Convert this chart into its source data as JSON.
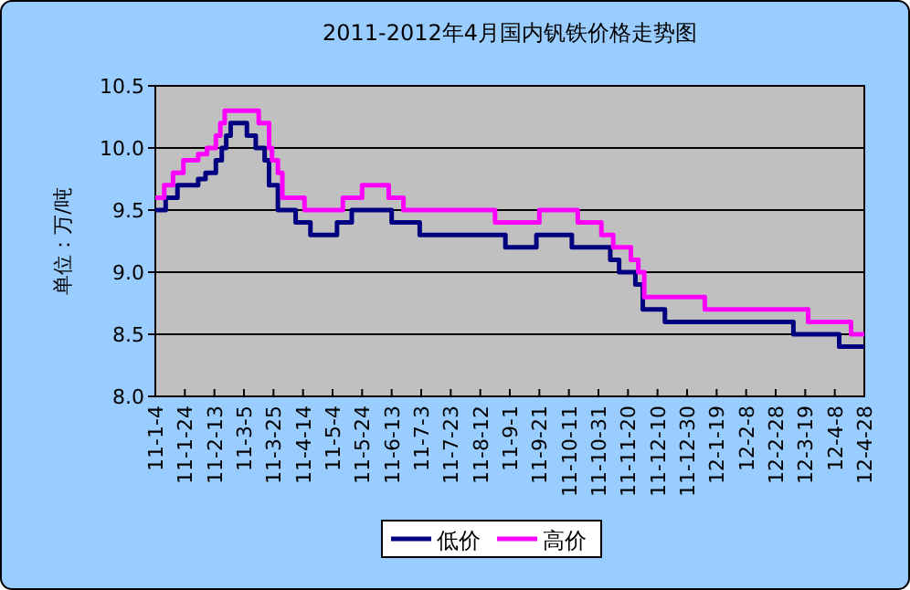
{
  "chart_data": {
    "type": "step",
    "title": "2011-2012年4月国内钒铁价格走势图",
    "ylabel": "单位：万/吨",
    "xlim": [
      "2011-01-04",
      "2012-04-28"
    ],
    "xticks": [
      {
        "value": "2011-01-04",
        "label": "11-1-4"
      },
      {
        "value": "2011-01-24",
        "label": "11-1-24"
      },
      {
        "value": "2011-02-13",
        "label": "11-2-13"
      },
      {
        "value": "2011-03-05",
        "label": "11-3-5"
      },
      {
        "value": "2011-03-25",
        "label": "11-3-25"
      },
      {
        "value": "2011-04-14",
        "label": "11-4-14"
      },
      {
        "value": "2011-05-04",
        "label": "11-5-4"
      },
      {
        "value": "2011-05-24",
        "label": "11-5-24"
      },
      {
        "value": "2011-06-13",
        "label": "11-6-13"
      },
      {
        "value": "2011-07-03",
        "label": "11-7-3"
      },
      {
        "value": "2011-07-23",
        "label": "11-7-23"
      },
      {
        "value": "2011-08-12",
        "label": "11-8-12"
      },
      {
        "value": "2011-09-01",
        "label": "11-9-1"
      },
      {
        "value": "2011-09-21",
        "label": "11-9-21"
      },
      {
        "value": "2011-10-11",
        "label": "11-10-11"
      },
      {
        "value": "2011-10-31",
        "label": "11-10-31"
      },
      {
        "value": "2011-11-20",
        "label": "11-11-20"
      },
      {
        "value": "2011-12-10",
        "label": "11-12-10"
      },
      {
        "value": "2011-12-30",
        "label": "11-12-30"
      },
      {
        "value": "2012-01-19",
        "label": "12-1-19"
      },
      {
        "value": "2012-02-08",
        "label": "12-2-8"
      },
      {
        "value": "2012-02-28",
        "label": "12-2-28"
      },
      {
        "value": "2012-03-19",
        "label": "12-3-19"
      },
      {
        "value": "2012-04-08",
        "label": "12-4-8"
      },
      {
        "value": "2012-04-28",
        "label": "12-4-28"
      }
    ],
    "ylim": [
      8,
      10.5
    ],
    "yticks": [
      {
        "value": 8,
        "label": "8.0"
      },
      {
        "value": 8.5,
        "label": "8.5"
      },
      {
        "value": 9,
        "label": "9.0"
      },
      {
        "value": 9.5,
        "label": "9.5"
      },
      {
        "value": 10,
        "label": "10.0"
      },
      {
        "value": 10.5,
        "label": "10.5"
      }
    ],
    "grid": "y",
    "legend": "bottom",
    "series": [
      {
        "name": "低价",
        "color": "#000080",
        "x": [
          "2011-01-04",
          "2011-01-11",
          "2011-01-19",
          "2011-02-02",
          "2011-02-07",
          "2011-02-14",
          "2011-02-18",
          "2011-02-21",
          "2011-02-24",
          "2011-03-07",
          "2011-03-13",
          "2011-03-19",
          "2011-03-22",
          "2011-03-28",
          "2011-04-09",
          "2011-04-19",
          "2011-05-07",
          "2011-05-17",
          "2011-06-13",
          "2011-07-02",
          "2011-08-29",
          "2011-09-19",
          "2011-10-13",
          "2011-11-08",
          "2011-11-14",
          "2011-11-25",
          "2011-11-30",
          "2011-12-15",
          "2012-03-11",
          "2012-04-11",
          "2012-04-28"
        ],
        "values": [
          9.5,
          9.6,
          9.7,
          9.75,
          9.8,
          9.9,
          10.0,
          10.1,
          10.2,
          10.1,
          10.0,
          9.9,
          9.7,
          9.5,
          9.4,
          9.3,
          9.4,
          9.5,
          9.4,
          9.3,
          9.2,
          9.3,
          9.2,
          9.1,
          9.0,
          8.9,
          8.7,
          8.6,
          8.5,
          8.4,
          8.4
        ]
      },
      {
        "name": "高价",
        "color": "#ff00ff",
        "x": [
          "2011-01-04",
          "2011-01-10",
          "2011-01-16",
          "2011-01-23",
          "2011-02-02",
          "2011-02-08",
          "2011-02-14",
          "2011-02-17",
          "2011-02-20",
          "2011-03-15",
          "2011-03-22",
          "2011-03-24",
          "2011-03-28",
          "2011-03-31",
          "2011-04-15",
          "2011-05-11",
          "2011-05-24",
          "2011-06-11",
          "2011-06-21",
          "2011-08-22",
          "2011-09-21",
          "2011-10-17",
          "2011-11-02",
          "2011-11-10",
          "2011-11-22",
          "2011-11-27",
          "2011-12-01",
          "2012-01-11",
          "2012-03-21",
          "2012-04-19",
          "2012-04-28"
        ],
        "values": [
          9.6,
          9.7,
          9.8,
          9.9,
          9.95,
          10.0,
          10.1,
          10.2,
          10.3,
          10.2,
          10.0,
          9.9,
          9.8,
          9.6,
          9.5,
          9.6,
          9.7,
          9.6,
          9.5,
          9.4,
          9.5,
          9.4,
          9.3,
          9.2,
          9.1,
          9.0,
          8.8,
          8.7,
          8.6,
          8.5,
          8.5
        ]
      }
    ]
  }
}
